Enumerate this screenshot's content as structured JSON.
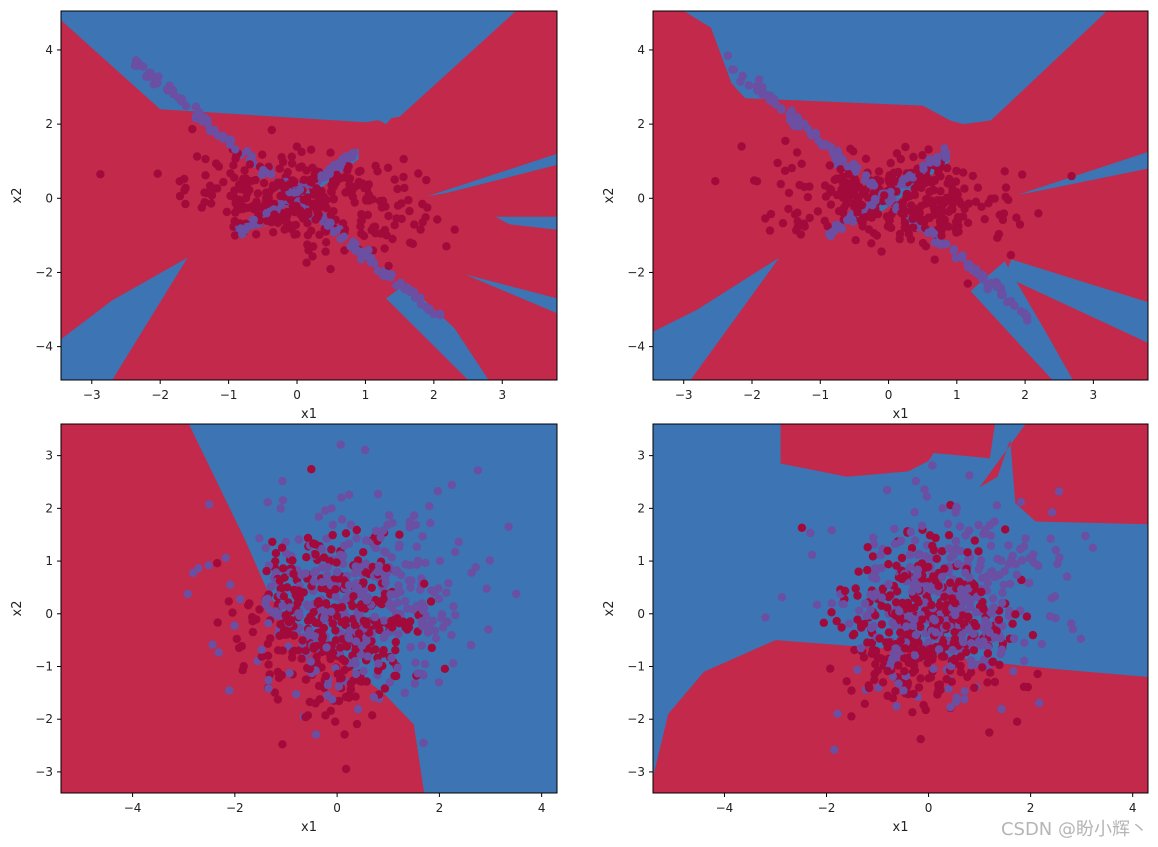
{
  "watermark": "CSDN @盼小辉丶",
  "colors": {
    "region_red": "#c3294a",
    "region_blue": "#3d74b3",
    "point_red": "#a30a3c",
    "point_purple": "#6a4fa3"
  },
  "chart_data": [
    {
      "type": "scatter",
      "title": "",
      "xlabel": "x1",
      "ylabel": "x2",
      "xlim": [
        -3.45,
        3.8
      ],
      "ylim": [
        -4.9,
        5.05
      ],
      "xticks": [
        -3,
        -2,
        -1,
        0,
        1,
        2,
        3
      ],
      "yticks": [
        -4,
        -2,
        0,
        2,
        4
      ],
      "background": "decision boundary (red / blue regions)",
      "series": [
        {
          "class": "red",
          "shape": "elliptical blob",
          "center": [
            0.1,
            0.0
          ],
          "spread": [
            0.85,
            0.75
          ],
          "count": 320
        },
        {
          "class": "purple",
          "shape": "X diagonals",
          "points": "along y=-1.6x and y=1.3x from x=-2.4 to 2.1",
          "count": 220
        }
      ]
    },
    {
      "type": "scatter",
      "title": "",
      "xlabel": "x1",
      "ylabel": "x2",
      "xlim": [
        -3.45,
        3.8
      ],
      "ylim": [
        -4.9,
        5.05
      ],
      "xticks": [
        -3,
        -2,
        -1,
        0,
        1,
        2,
        3
      ],
      "yticks": [
        -4,
        -2,
        0,
        2,
        4
      ],
      "background": "decision boundary (red / blue regions)",
      "series": [
        {
          "class": "red",
          "shape": "elliptical blob",
          "center": [
            0.1,
            0.0
          ],
          "spread": [
            0.85,
            0.75
          ],
          "count": 320
        },
        {
          "class": "purple",
          "shape": "X diagonals",
          "count": 220
        }
      ]
    },
    {
      "type": "scatter",
      "title": "",
      "xlabel": "x1",
      "ylabel": "x2",
      "xlim": [
        -5.4,
        4.3
      ],
      "ylim": [
        -3.4,
        3.6
      ],
      "xticks": [
        -4,
        -2,
        0,
        2,
        4
      ],
      "yticks": [
        -3,
        -2,
        -1,
        0,
        1,
        2,
        3
      ],
      "background": "decision boundary (red left / blue right)",
      "series": [
        {
          "class": "red",
          "shape": "gaussian blob",
          "center": [
            0.0,
            0.0
          ],
          "spread": [
            0.9,
            0.85
          ],
          "count": 350
        },
        {
          "class": "purple",
          "shape": "gaussian blob",
          "center": [
            0.3,
            0.2
          ],
          "spread": [
            1.0,
            0.9
          ],
          "count": 350
        }
      ]
    },
    {
      "type": "scatter",
      "title": "",
      "xlabel": "x1",
      "ylabel": "x2",
      "xlim": [
        -5.4,
        4.3
      ],
      "ylim": [
        -3.4,
        3.6
      ],
      "xticks": [
        -4,
        -2,
        0,
        2,
        4
      ],
      "yticks": [
        -3,
        -2,
        -1,
        0,
        1,
        2,
        3
      ],
      "background": "decision boundary (blue top-left, red bottom & top-right)",
      "series": [
        {
          "class": "red",
          "shape": "gaussian blob",
          "center": [
            0.0,
            0.0
          ],
          "spread": [
            0.9,
            0.85
          ],
          "count": 350
        },
        {
          "class": "purple",
          "shape": "gaussian blob",
          "center": [
            0.3,
            0.2
          ],
          "spread": [
            1.0,
            0.9
          ],
          "count": 350
        }
      ]
    }
  ]
}
